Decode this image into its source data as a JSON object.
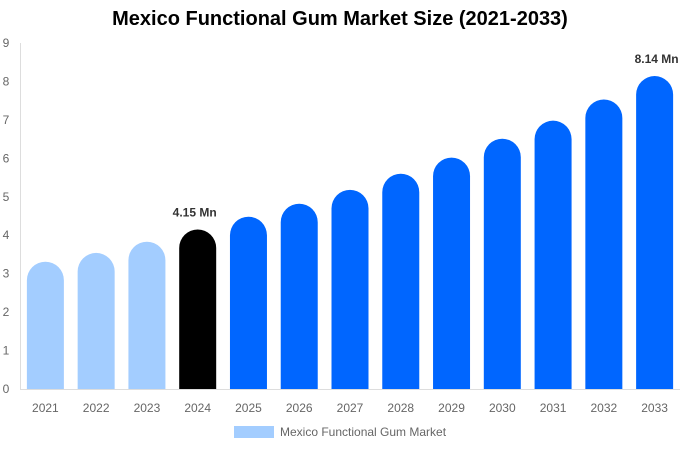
{
  "chart_data": {
    "type": "bar",
    "title": "Mexico Functional Gum Market Size (2021-2033)",
    "categories": [
      "2021",
      "2022",
      "2023",
      "2024",
      "2025",
      "2026",
      "2027",
      "2028",
      "2029",
      "2030",
      "2031",
      "2032",
      "2033"
    ],
    "series": [
      {
        "name": "Mexico Functional Gum Market",
        "values": [
          3.31,
          3.54,
          3.83,
          4.15,
          4.48,
          4.82,
          5.18,
          5.6,
          6.02,
          6.51,
          6.98,
          7.53,
          8.14
        ]
      }
    ],
    "data_labels": {
      "3": "4.15 Mn",
      "12": "8.14 Mn"
    },
    "yticks": [
      0,
      1,
      2,
      3,
      4,
      5,
      6,
      7,
      8,
      9
    ],
    "ylim": [
      0,
      9
    ],
    "xlabel": "",
    "ylabel": "",
    "grid": false,
    "legend": "bottom",
    "colors": {
      "historical": "#a3cdff",
      "base_year": "#000000",
      "forecast": "#0066ff"
    }
  }
}
